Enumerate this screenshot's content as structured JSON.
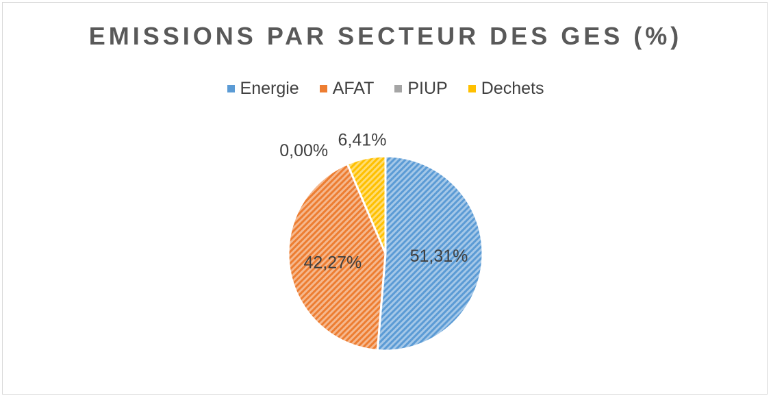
{
  "chart_data": {
    "type": "pie",
    "title": "EMISSIONS PAR SECTEUR DES GES (%)",
    "legend_position": "top",
    "categories": [
      "Energie",
      "AFAT",
      "PIUP",
      "Dechets"
    ],
    "values": [
      51.31,
      42.27,
      0.0,
      6.41
    ],
    "value_labels": [
      "51,31%",
      "42,27%",
      "0,00%",
      "6,41%"
    ],
    "colors": [
      "#5b9bd5",
      "#ed7d31",
      "#a5a5a5",
      "#ffc000"
    ],
    "fill_pattern": "diagonal-hatch"
  }
}
